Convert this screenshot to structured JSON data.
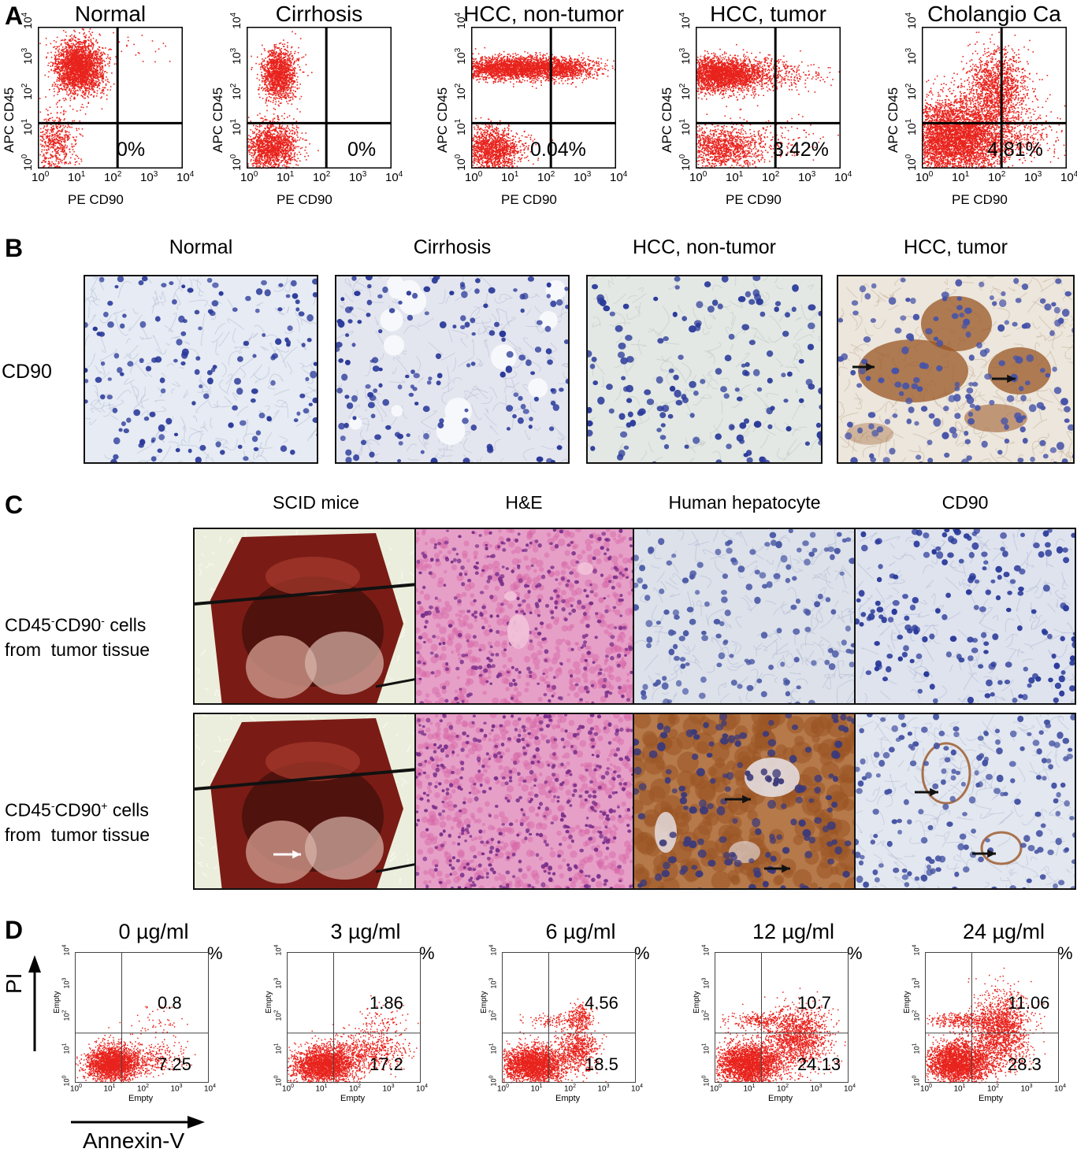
{
  "panel_letters": [
    "A",
    "B",
    "C",
    "D"
  ],
  "panelA": {
    "y_axis_label": "APC CD45",
    "x_axis_label": "PE CD90",
    "plots": [
      {
        "title": "Normal",
        "percent": "0%"
      },
      {
        "title": "Cirrhosis",
        "percent": "0%"
      },
      {
        "title": "HCC, non-tumor",
        "percent": "0.04%"
      },
      {
        "title": "HCC, tumor",
        "percent": "3.42%"
      },
      {
        "title": "Cholangio Ca",
        "percent": "4.81%"
      }
    ]
  },
  "panelB": {
    "row_label": "CD90",
    "columns": [
      "Normal",
      "Cirrhosis",
      "HCC, non-tumor",
      "HCC, tumor"
    ]
  },
  "panelC": {
    "columns": [
      "SCID mice",
      "H&E",
      "Human hepatocyte",
      "CD90"
    ],
    "rows": [
      {
        "line1_prefix": "CD45",
        "sup1": "-",
        "mid": "CD90",
        "sup2": "-",
        "line1_suffix": " cells",
        "line2": "from  tumor tissue"
      },
      {
        "line1_prefix": "CD45",
        "sup1": "-",
        "mid": "CD90",
        "sup2": "+",
        "line1_suffix": " cells",
        "line2": "from  tumor tissue"
      }
    ]
  },
  "panelD": {
    "y_axis_label": "PI",
    "x_axis_label": "Annexin-V",
    "unit_symbol": "%",
    "empty_label": "Empty",
    "plots": [
      {
        "title": "0 µg/ml",
        "upper_right": "0.8",
        "lower_right": "7.25"
      },
      {
        "title": "3 µg/ml",
        "upper_right": "1.86",
        "lower_right": "17.2"
      },
      {
        "title": "6 µg/ml",
        "upper_right": "4.56",
        "lower_right": "18.5"
      },
      {
        "title": "12 µg/ml",
        "upper_right": "10.7",
        "lower_right": "24.13"
      },
      {
        "title": "24 µg/ml",
        "upper_right": "11.06",
        "lower_right": "28.3"
      }
    ]
  },
  "tick_labels": {
    "decades": [
      "10",
      "10",
      "10",
      "10",
      "10"
    ],
    "exponents": [
      "0",
      "1",
      "2",
      "3",
      "4"
    ]
  },
  "colors": {
    "dots": "#e8231d",
    "nuclei": "#2a3a9a",
    "he_background": "#e25aa0",
    "dab_brown": "#9a5524"
  }
}
